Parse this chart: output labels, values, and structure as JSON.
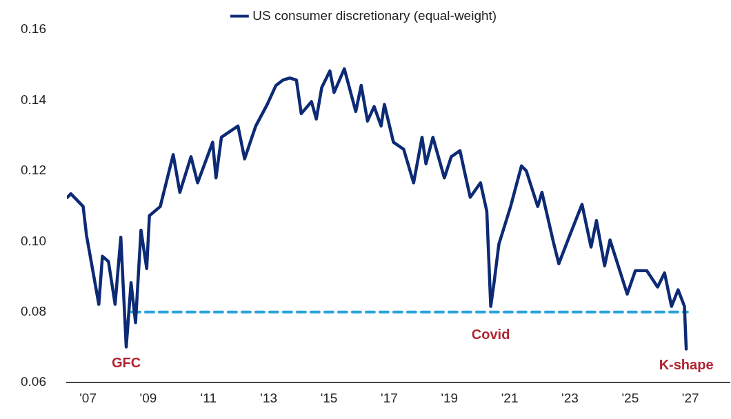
{
  "chart_data": {
    "type": "line",
    "series": [
      {
        "name": "US consumer discretionary (equal-weight)",
        "color": "#0d2a75",
        "x": [
          2006.32,
          2006.43,
          2006.84,
          2006.95,
          2007.36,
          2007.48,
          2007.68,
          2007.9,
          2008.09,
          2008.27,
          2008.43,
          2008.58,
          2008.76,
          2008.95,
          2009.04,
          2009.4,
          2009.83,
          2010.05,
          2010.42,
          2010.64,
          2011.14,
          2011.25,
          2011.43,
          2011.98,
          2012.2,
          2012.57,
          2012.95,
          2013.24,
          2013.47,
          2013.7,
          2013.92,
          2014.08,
          2014.42,
          2014.58,
          2014.76,
          2015.03,
          2015.17,
          2015.51,
          2015.89,
          2016.07,
          2016.28,
          2016.5,
          2016.73,
          2016.84,
          2017.14,
          2017.48,
          2017.81,
          2018.09,
          2018.22,
          2018.45,
          2018.83,
          2019.06,
          2019.35,
          2019.51,
          2019.69,
          2020.03,
          2020.24,
          2020.37,
          2020.48,
          2020.64,
          2021.03,
          2021.39,
          2021.55,
          2021.93,
          2022.07,
          2022.45,
          2022.63,
          2022.97,
          2023.4,
          2023.7,
          2023.88,
          2024.15,
          2024.33,
          2024.9,
          2025.17,
          2025.55,
          2025.91,
          2026.14,
          2026.37,
          2026.59,
          2026.8,
          2026.86
        ],
        "values": [
          0.1125,
          0.1135,
          0.1099,
          0.1018,
          0.0822,
          0.0958,
          0.0943,
          0.0822,
          0.1012,
          0.0701,
          0.0883,
          0.077,
          0.1032,
          0.0923,
          0.1073,
          0.1099,
          0.1246,
          0.1139,
          0.124,
          0.1166,
          0.1281,
          0.118,
          0.1295,
          0.1327,
          0.1234,
          0.1327,
          0.1388,
          0.1442,
          0.1457,
          0.1463,
          0.1457,
          0.1362,
          0.1396,
          0.1347,
          0.1436,
          0.1483,
          0.1422,
          0.1489,
          0.1368,
          0.1442,
          0.1341,
          0.1382,
          0.1327,
          0.1388,
          0.1281,
          0.1261,
          0.1166,
          0.1295,
          0.122,
          0.1295,
          0.118,
          0.124,
          0.1257,
          0.1194,
          0.1125,
          0.1166,
          0.1085,
          0.0816,
          0.0883,
          0.0992,
          0.1099,
          0.1214,
          0.12,
          0.1099,
          0.1139,
          0.0998,
          0.0937,
          0.1012,
          0.1105,
          0.0984,
          0.1059,
          0.0931,
          0.1004,
          0.0851,
          0.0917,
          0.0917,
          0.0871,
          0.0911,
          0.0816,
          0.0863,
          0.0816,
          0.0695
        ]
      },
      {
        "color": "#29a3dc",
        "line_style": "dashed",
        "x": [
          2008.45,
          2026.9
        ],
        "values": [
          0.08,
          0.08
        ]
      }
    ],
    "xlim": [
      2006.3,
      2028.3
    ],
    "xticks": [
      {
        "value": 2007,
        "label": "'07"
      },
      {
        "value": 2009,
        "label": "'09"
      },
      {
        "value": 2011,
        "label": "'11"
      },
      {
        "value": 2013,
        "label": "'13"
      },
      {
        "value": 2015,
        "label": "'15"
      },
      {
        "value": 2017,
        "label": "'17"
      },
      {
        "value": 2019,
        "label": "'19"
      },
      {
        "value": 2021,
        "label": "'21"
      },
      {
        "value": 2023,
        "label": "'23"
      },
      {
        "value": 2025,
        "label": "'25"
      },
      {
        "value": 2027,
        "label": "'27"
      }
    ],
    "ylim": [
      0.06,
      0.16
    ],
    "yticks": [
      {
        "value": 0.06,
        "label": "0.06"
      },
      {
        "value": 0.08,
        "label": "0.08"
      },
      {
        "value": 0.1,
        "label": "0.10"
      },
      {
        "value": 0.12,
        "label": "0.12"
      },
      {
        "value": 0.14,
        "label": "0.14"
      },
      {
        "value": 0.16,
        "label": "0.16"
      }
    ],
    "annotations": [
      {
        "text": "GFC",
        "x": 2008.27,
        "y": 0.0701
      },
      {
        "text": "Covid",
        "x": 2020.37,
        "y": 0.0816
      },
      {
        "text": "K-shape",
        "x": 2026.86,
        "y": 0.0695
      }
    ],
    "legend": "top",
    "grid": false,
    "marker": "none",
    "line_style": "solid"
  }
}
